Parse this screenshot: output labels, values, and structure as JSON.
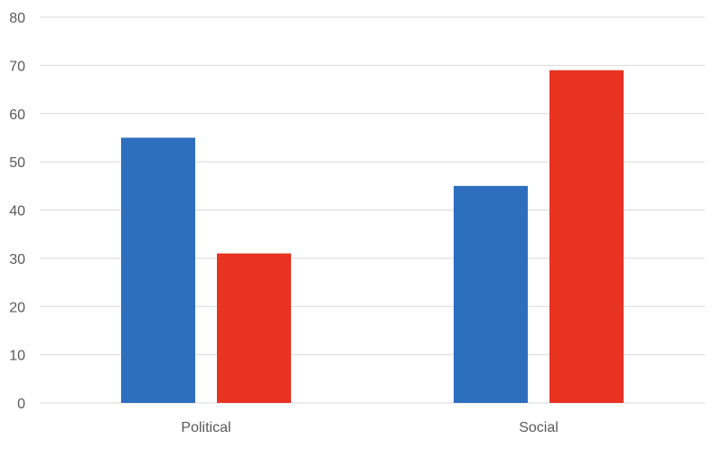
{
  "chart_data": {
    "type": "bar",
    "categories": [
      "Political",
      "Social"
    ],
    "series": [
      {
        "values": [
          55,
          45
        ]
      },
      {
        "values": [
          31,
          69
        ]
      }
    ],
    "ylim": [
      0,
      80
    ],
    "yticks": [
      0,
      10,
      20,
      30,
      40,
      50,
      60,
      70,
      80
    ],
    "grid": true,
    "colors": [
      "#2e6ebe",
      "#e83323"
    ],
    "gridline_color": "#d9d9d9"
  }
}
